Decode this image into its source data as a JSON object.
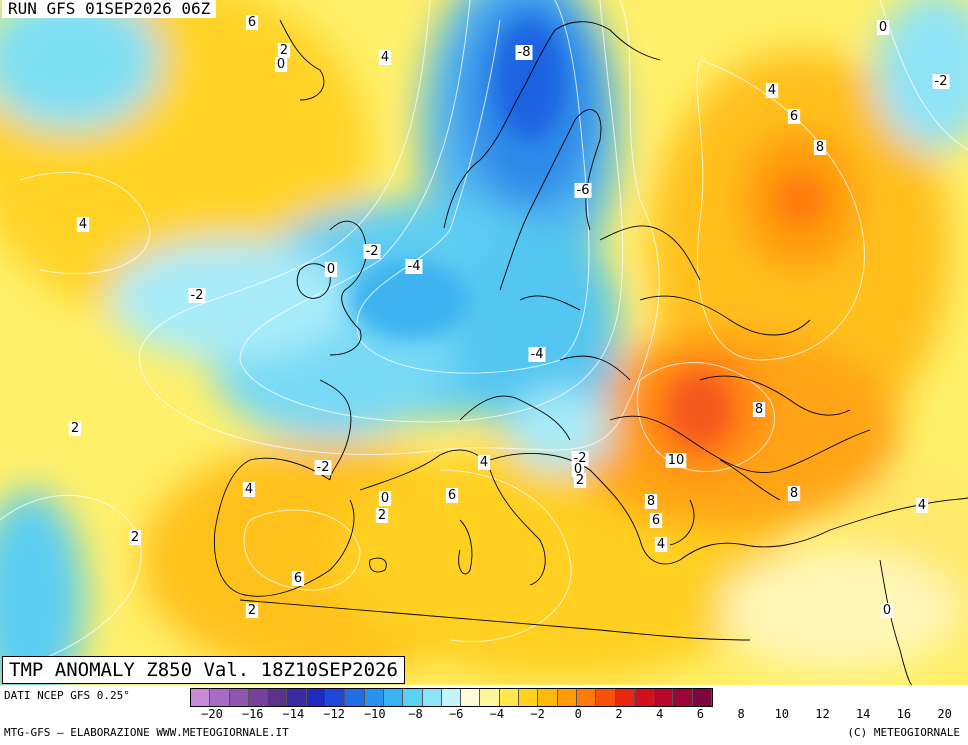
{
  "header": {
    "run_label": "RUN GFS 01SEP2026 06Z"
  },
  "title": "TMP ANOMALY Z850 Val. 18Z10SEP2026",
  "footer": {
    "source": "DATI NCEP GFS 0.25°",
    "credit_left": "MTG-GFS — ELABORAZIONE WWW.METEOGIORNALE.IT",
    "credit_right": "(C) METEOGIORNALE"
  },
  "colorbar": {
    "colors": [
      "#c78ad6",
      "#a86cc4",
      "#8f55b0",
      "#74429d",
      "#5c318c",
      "#3b2aa0",
      "#1f2bbf",
      "#1e49d8",
      "#1f6ee6",
      "#2a92ee",
      "#3ab3f2",
      "#5cd0f5",
      "#8be5f8",
      "#c4f3fb",
      "#fffbd8",
      "#fff59a",
      "#ffe84a",
      "#ffd21e",
      "#ffb80e",
      "#ff9a08",
      "#ff7a06",
      "#f75208",
      "#e8280e",
      "#d2101c",
      "#b8082c",
      "#9a0636",
      "#7f0540"
    ],
    "tick_labels": [
      "-20",
      "-16",
      "-14",
      "-12",
      "-10",
      "-8",
      "-6",
      "-4",
      "-2",
      "0",
      "2",
      "4",
      "6",
      "8",
      "10",
      "12",
      "14",
      "16",
      "20"
    ]
  },
  "map_labels": [
    {
      "id": "n8-scandinavia",
      "text": "-8"
    },
    {
      "id": "n6-baltic",
      "text": "-6"
    },
    {
      "id": "n4-northsea",
      "text": "-4"
    },
    {
      "id": "n4-central",
      "text": "-4"
    },
    {
      "id": "n2-ireland",
      "text": "-2"
    },
    {
      "id": "n2-atlantic",
      "text": "-2"
    },
    {
      "id": "n2-pyrenees",
      "text": "-2"
    },
    {
      "id": "n2-adriatic",
      "text": "-2"
    },
    {
      "id": "n2-russia",
      "text": "-2"
    },
    {
      "id": "z-ireland",
      "text": "0"
    },
    {
      "id": "z-faroe",
      "text": "0"
    },
    {
      "id": "z-garonne",
      "text": "0"
    },
    {
      "id": "z-balkan",
      "text": "0"
    },
    {
      "id": "z-levant",
      "text": "0"
    },
    {
      "id": "z-nw",
      "text": "0"
    },
    {
      "id": "p2-faroe",
      "text": "2"
    },
    {
      "id": "p2-biscay",
      "text": "2"
    },
    {
      "id": "p2-portugal",
      "text": "2"
    },
    {
      "id": "p2-france",
      "text": "2"
    },
    {
      "id": "p2-balkan",
      "text": "2"
    },
    {
      "id": "p2-africa",
      "text": "2"
    },
    {
      "id": "p4-atlantic",
      "text": "4"
    },
    {
      "id": "p4-norwegian",
      "text": "4"
    },
    {
      "id": "p4-spain",
      "text": "4"
    },
    {
      "id": "p4-italy",
      "text": "4"
    },
    {
      "id": "p4-russia",
      "text": "4"
    },
    {
      "id": "p4-greece",
      "text": "4"
    },
    {
      "id": "p4-turkey",
      "text": "4"
    },
    {
      "id": "p6-top",
      "text": "6"
    },
    {
      "id": "p6-sardinia",
      "text": "6"
    },
    {
      "id": "p6-russia",
      "text": "6"
    },
    {
      "id": "p6-spain",
      "text": "6"
    },
    {
      "id": "p6-balkan",
      "text": "6"
    },
    {
      "id": "p8-russia",
      "text": "8"
    },
    {
      "id": "p8-ukraine",
      "text": "8"
    },
    {
      "id": "p8-blacksea",
      "text": "8"
    },
    {
      "id": "p8-balkan",
      "text": "8"
    },
    {
      "id": "p10-romania",
      "text": "10"
    }
  ]
}
